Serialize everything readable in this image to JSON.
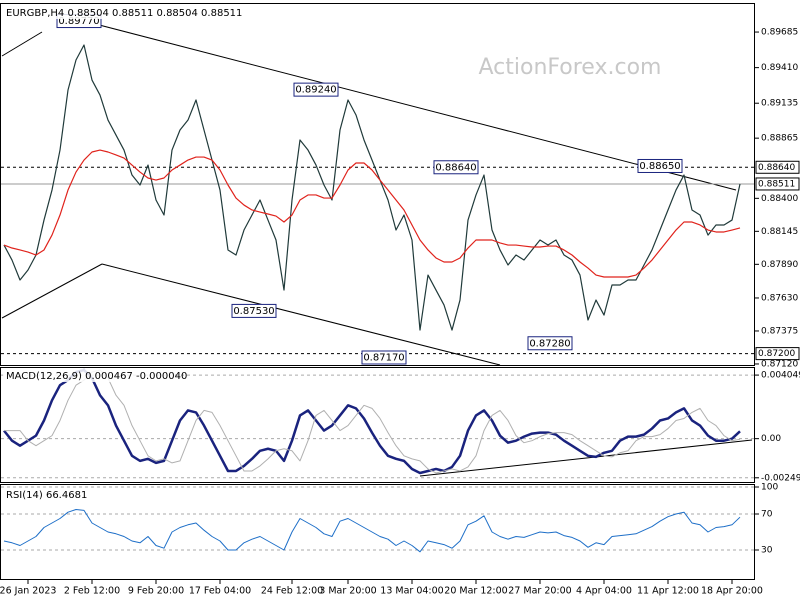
{
  "chart_data": [
    {
      "type": "line",
      "title": "EURGBP,H4 0.88504 0.88511 0.88504 0.88511",
      "watermark": "ActionForex.com",
      "categories": [
        null,
        null,
        null,
        "26 Jan 2023",
        null,
        null,
        null,
        null,
        null,
        null,
        null,
        "2 Feb 12:00",
        null,
        null,
        null,
        null,
        null,
        null,
        null,
        "9 Feb 20:00",
        null,
        null,
        null,
        null,
        null,
        null,
        null,
        "17 Feb 04:00",
        null,
        null,
        null,
        null,
        null,
        null,
        null,
        null,
        "24 Feb 12:00",
        null,
        null,
        null,
        null,
        null,
        null,
        "3 Mar 20:00",
        null,
        null,
        null,
        null,
        null,
        null,
        null,
        "13 Mar 04:00",
        null,
        null,
        null,
        null,
        null,
        null,
        null,
        "20 Mar 12:00",
        null,
        null,
        null,
        null,
        null,
        null,
        null,
        "27 Mar 20:00",
        null,
        null,
        null,
        null,
        null,
        null,
        null,
        "4 Apr 04:00",
        null,
        null,
        null,
        null,
        null,
        null,
        null,
        "11 Apr 12:00",
        null,
        null,
        null,
        null,
        null,
        null,
        null,
        "18 Apr 20:00",
        null
      ],
      "series": [
        {
          "color": "#203a3a",
          "values": [
            0.88039,
            0.87923,
            0.87769,
            0.87846,
            0.87962,
            0.88232,
            0.88464,
            0.88773,
            0.89237,
            0.89469,
            0.89585,
            0.89314,
            0.89198,
            0.89005,
            0.88889,
            0.88773,
            0.8858,
            0.88503,
            0.88657,
            0.88387,
            0.88271,
            0.88773,
            0.88928,
            0.89005,
            0.8916,
            0.88928,
            0.88696,
            0.88464,
            0.88001,
            0.87962,
            0.88155,
            0.88271,
            0.88387,
            0.88232,
            0.88078,
            0.87691,
            0.88387,
            0.88851,
            0.88773,
            0.88657,
            0.88503,
            0.88387,
            0.88928,
            0.8916,
            0.89044,
            0.88851,
            0.88696,
            0.88541,
            0.88387,
            0.88155,
            0.88271,
            0.88078,
            0.87382,
            0.87807,
            0.87691,
            0.87576,
            0.87382,
            0.87614,
            0.88232,
            0.88426,
            0.8858,
            0.88155,
            0.88001,
            0.87885,
            0.87962,
            0.87923,
            0.88001,
            0.88078,
            0.88039,
            0.88078,
            0.87962,
            0.87923,
            0.87807,
            0.8746,
            0.87614,
            0.87498,
            0.8773,
            0.8773,
            0.87769,
            0.87769,
            0.87885,
            0.88001,
            0.88155,
            0.8831,
            0.88464,
            0.8858,
            0.8831,
            0.88271,
            0.88116,
            0.88194,
            0.88194,
            0.88232,
            0.88511
          ]
        },
        {
          "color": "#e0231c",
          "values": [
            0.88039,
            0.88016,
            0.88001,
            0.87985,
            0.87962,
            0.88001,
            0.88116,
            0.88271,
            0.88464,
            0.88603,
            0.88696,
            0.88758,
            0.88773,
            0.88758,
            0.88735,
            0.88711,
            0.88657,
            0.88603,
            0.88557,
            0.88541,
            0.88557,
            0.88619,
            0.88657,
            0.88696,
            0.88719,
            0.88719,
            0.88696,
            0.88619,
            0.88503,
            0.88402,
            0.88348,
            0.8831,
            0.88294,
            0.88279,
            0.88263,
            0.88217,
            0.88271,
            0.88387,
            0.88426,
            0.88426,
            0.88402,
            0.88402,
            0.88503,
            0.88619,
            0.88673,
            0.88673,
            0.88619,
            0.88541,
            0.88464,
            0.88387,
            0.8831,
            0.88194,
            0.88078,
            0.88001,
            0.87939,
            0.87908,
            0.87908,
            0.87939,
            0.88016,
            0.88078,
            0.88078,
            0.88078,
            0.88055,
            0.88039,
            0.88039,
            0.88031,
            0.88024,
            0.88024,
            0.88031,
            0.88031,
            0.88001,
            0.87962,
            0.87908,
            0.87861,
            0.87807,
            0.87792,
            0.87792,
            0.87792,
            0.87792,
            0.87807,
            0.87861,
            0.87923,
            0.88001,
            0.88078,
            0.88155,
            0.88217,
            0.88217,
            0.88194,
            0.88155,
            0.8814,
            0.8814,
            0.88155,
            0.88171
          ]
        }
      ],
      "ylim": [
        0.87112,
        0.89894
      ],
      "yticks": [
        {
          "value": 0.89685,
          "label": "0.89685"
        },
        {
          "value": 0.8941,
          "label": "0.89410"
        },
        0.89135,
        0.88865,
        {
          "value": 0.884,
          "label": "0.88400"
        },
        0.88145,
        {
          "value": 0.8789,
          "label": "0.87890"
        },
        {
          "value": 0.8763,
          "label": "0.87630"
        },
        0.87375,
        {
          "value": 0.8712,
          "label": "0.87120"
        }
      ],
      "price_lines": [
        {
          "value": 0.8864,
          "label": "0.88640",
          "style": "dashed"
        },
        {
          "value": 0.88511,
          "label": "0.88511",
          "style": "solid"
        },
        {
          "value": 0.872,
          "label": "0.87200",
          "style": "dashed"
        }
      ],
      "annotations": [
        {
          "value": 0.8977,
          "label": "0.89770"
        },
        {
          "value": 0.8924,
          "label": "0.89240"
        },
        {
          "value": 0.8864,
          "label": "0.88640"
        },
        {
          "value": 0.8865,
          "label": "0.88650"
        },
        {
          "value": 0.8753,
          "label": "0.87530"
        },
        {
          "value": 0.8717,
          "label": "0.87170"
        },
        {
          "value": 0.8728,
          "label": "0.87280"
        }
      ],
      "grid": false
    },
    {
      "type": "line",
      "title": "MACD(12,26,9) 0.000467 -0.000040",
      "series": [
        {
          "color": "#1a237e",
          "width": 2.5,
          "values": [
            0.000514,
            -0.000129,
            -0.00045,
            -0.000129,
            0.000193,
            0.001157,
            0.002442,
            0.003406,
            0.003729,
            0.004244,
            0.00437,
            0.003858,
            0.002765,
            0.002122,
            0.000836,
            -0.000129,
            -0.001093,
            -0.001415,
            -0.001286,
            -0.001543,
            -0.001415,
            -0.000129,
            0.001157,
            0.0018,
            0.001672,
            0.000836,
            -0.000129,
            -0.001093,
            -0.002058,
            -0.002058,
            -0.001736,
            -0.001286,
            -0.000772,
            -0.000643,
            -0.000772,
            -0.001415,
            -0.000129,
            0.001479,
            0.0018,
            0.001157,
            0.000514,
            0.000836,
            0.001479,
            0.002122,
            0.001929,
            0.001286,
            0.000386,
            -0.00045,
            -0.001093,
            -0.001286,
            -0.001415,
            -0.001929,
            -0.002186,
            -0.002058,
            -0.001929,
            -0.002058,
            -0.0018,
            -0.001093,
            0.000514,
            0.001479,
            0.0018,
            0.001157,
            0.000193,
            -0.000257,
            -0.000129,
            0.000129,
            0.000322,
            0.000386,
            0.000386,
            0.000257,
            -0.000129,
            -0.00045,
            -0.000772,
            -0.001093,
            -0.001157,
            -0.0009,
            -0.000772,
            -0.000129,
            0.000129,
            0.000129,
            0.000257,
            0.000643,
            0.001157,
            0.001286,
            0.001672,
            0.001929,
            0.001157,
            0.000836,
            0.000193,
            -0.000129,
            -0.000129,
            0,
            0.000467
          ]
        },
        {
          "color": "#b0b0b0",
          "width": 1,
          "values": [
            0.000514,
            0.000514,
            0.000514,
            -0.000129,
            -0.00045,
            -0.000129,
            0.000193,
            0.001157,
            0.002442,
            0.003406,
            0.003729,
            0.004244,
            0.00437,
            0.003858,
            0.002765,
            0.002122,
            0.000836,
            -0.000129,
            -0.001093,
            -0.001415,
            -0.001286,
            -0.001543,
            -0.001415,
            -0.000129,
            0.001157,
            0.0018,
            0.001672,
            0.000836,
            -0.000129,
            -0.001093,
            -0.002058,
            -0.002058,
            -0.001736,
            -0.001286,
            -0.000772,
            -0.000643,
            -0.000772,
            -0.001415,
            -0.000129,
            0.001479,
            0.0018,
            0.001157,
            0.000514,
            0.000836,
            0.001479,
            0.002122,
            0.001929,
            0.001286,
            0.000386,
            -0.00045,
            -0.001093,
            -0.001286,
            -0.001415,
            -0.001929,
            -0.002186,
            -0.002058,
            -0.001929,
            -0.002058,
            -0.0018,
            -0.001093,
            0.000514,
            0.001479,
            0.0018,
            0.001157,
            0.000193,
            -0.000257,
            -0.000129,
            0.000129,
            0.000322,
            0.000386,
            0.000386,
            0.000257,
            -0.000129,
            -0.00045,
            -0.000772,
            -0.001093,
            -0.001157,
            -0.0009,
            -0.000772,
            -0.000129,
            0.000129,
            0.000129,
            0.000257,
            0.000643,
            0.001157,
            0.001286,
            0.001672,
            0.001929,
            0.001157,
            0.000836,
            0.000193,
            -0.000129,
            -4e-05
          ]
        }
      ],
      "ylim": [
        -0.00276,
        0.0045
      ],
      "yticks": [
        0.004049,
        {
          "value": 0,
          "label": "0.00"
        },
        -0.002492
      ],
      "grid": true
    },
    {
      "type": "line",
      "title": "RSI(14) 66.4681",
      "series": [
        {
          "color": "#1e6fc8",
          "width": 1,
          "values": [
            40,
            38,
            35,
            40,
            45,
            55,
            60,
            65,
            72,
            75,
            74,
            60,
            55,
            50,
            48,
            45,
            40,
            38,
            45,
            35,
            32,
            50,
            55,
            58,
            60,
            52,
            45,
            40,
            30,
            30,
            38,
            42,
            45,
            40,
            35,
            30,
            50,
            65,
            60,
            55,
            48,
            45,
            62,
            65,
            60,
            55,
            50,
            45,
            42,
            35,
            40,
            35,
            28,
            40,
            38,
            36,
            32,
            40,
            58,
            62,
            68,
            50,
            45,
            42,
            45,
            44,
            47,
            50,
            49,
            50,
            46,
            44,
            40,
            33,
            38,
            36,
            45,
            46,
            47,
            48,
            52,
            56,
            62,
            67,
            70,
            72,
            60,
            58,
            50,
            55,
            56,
            58,
            66.4681
          ]
        }
      ],
      "ylim": [
        0,
        100
      ],
      "yticks": [
        100,
        70,
        30
      ],
      "grid": true
    }
  ]
}
